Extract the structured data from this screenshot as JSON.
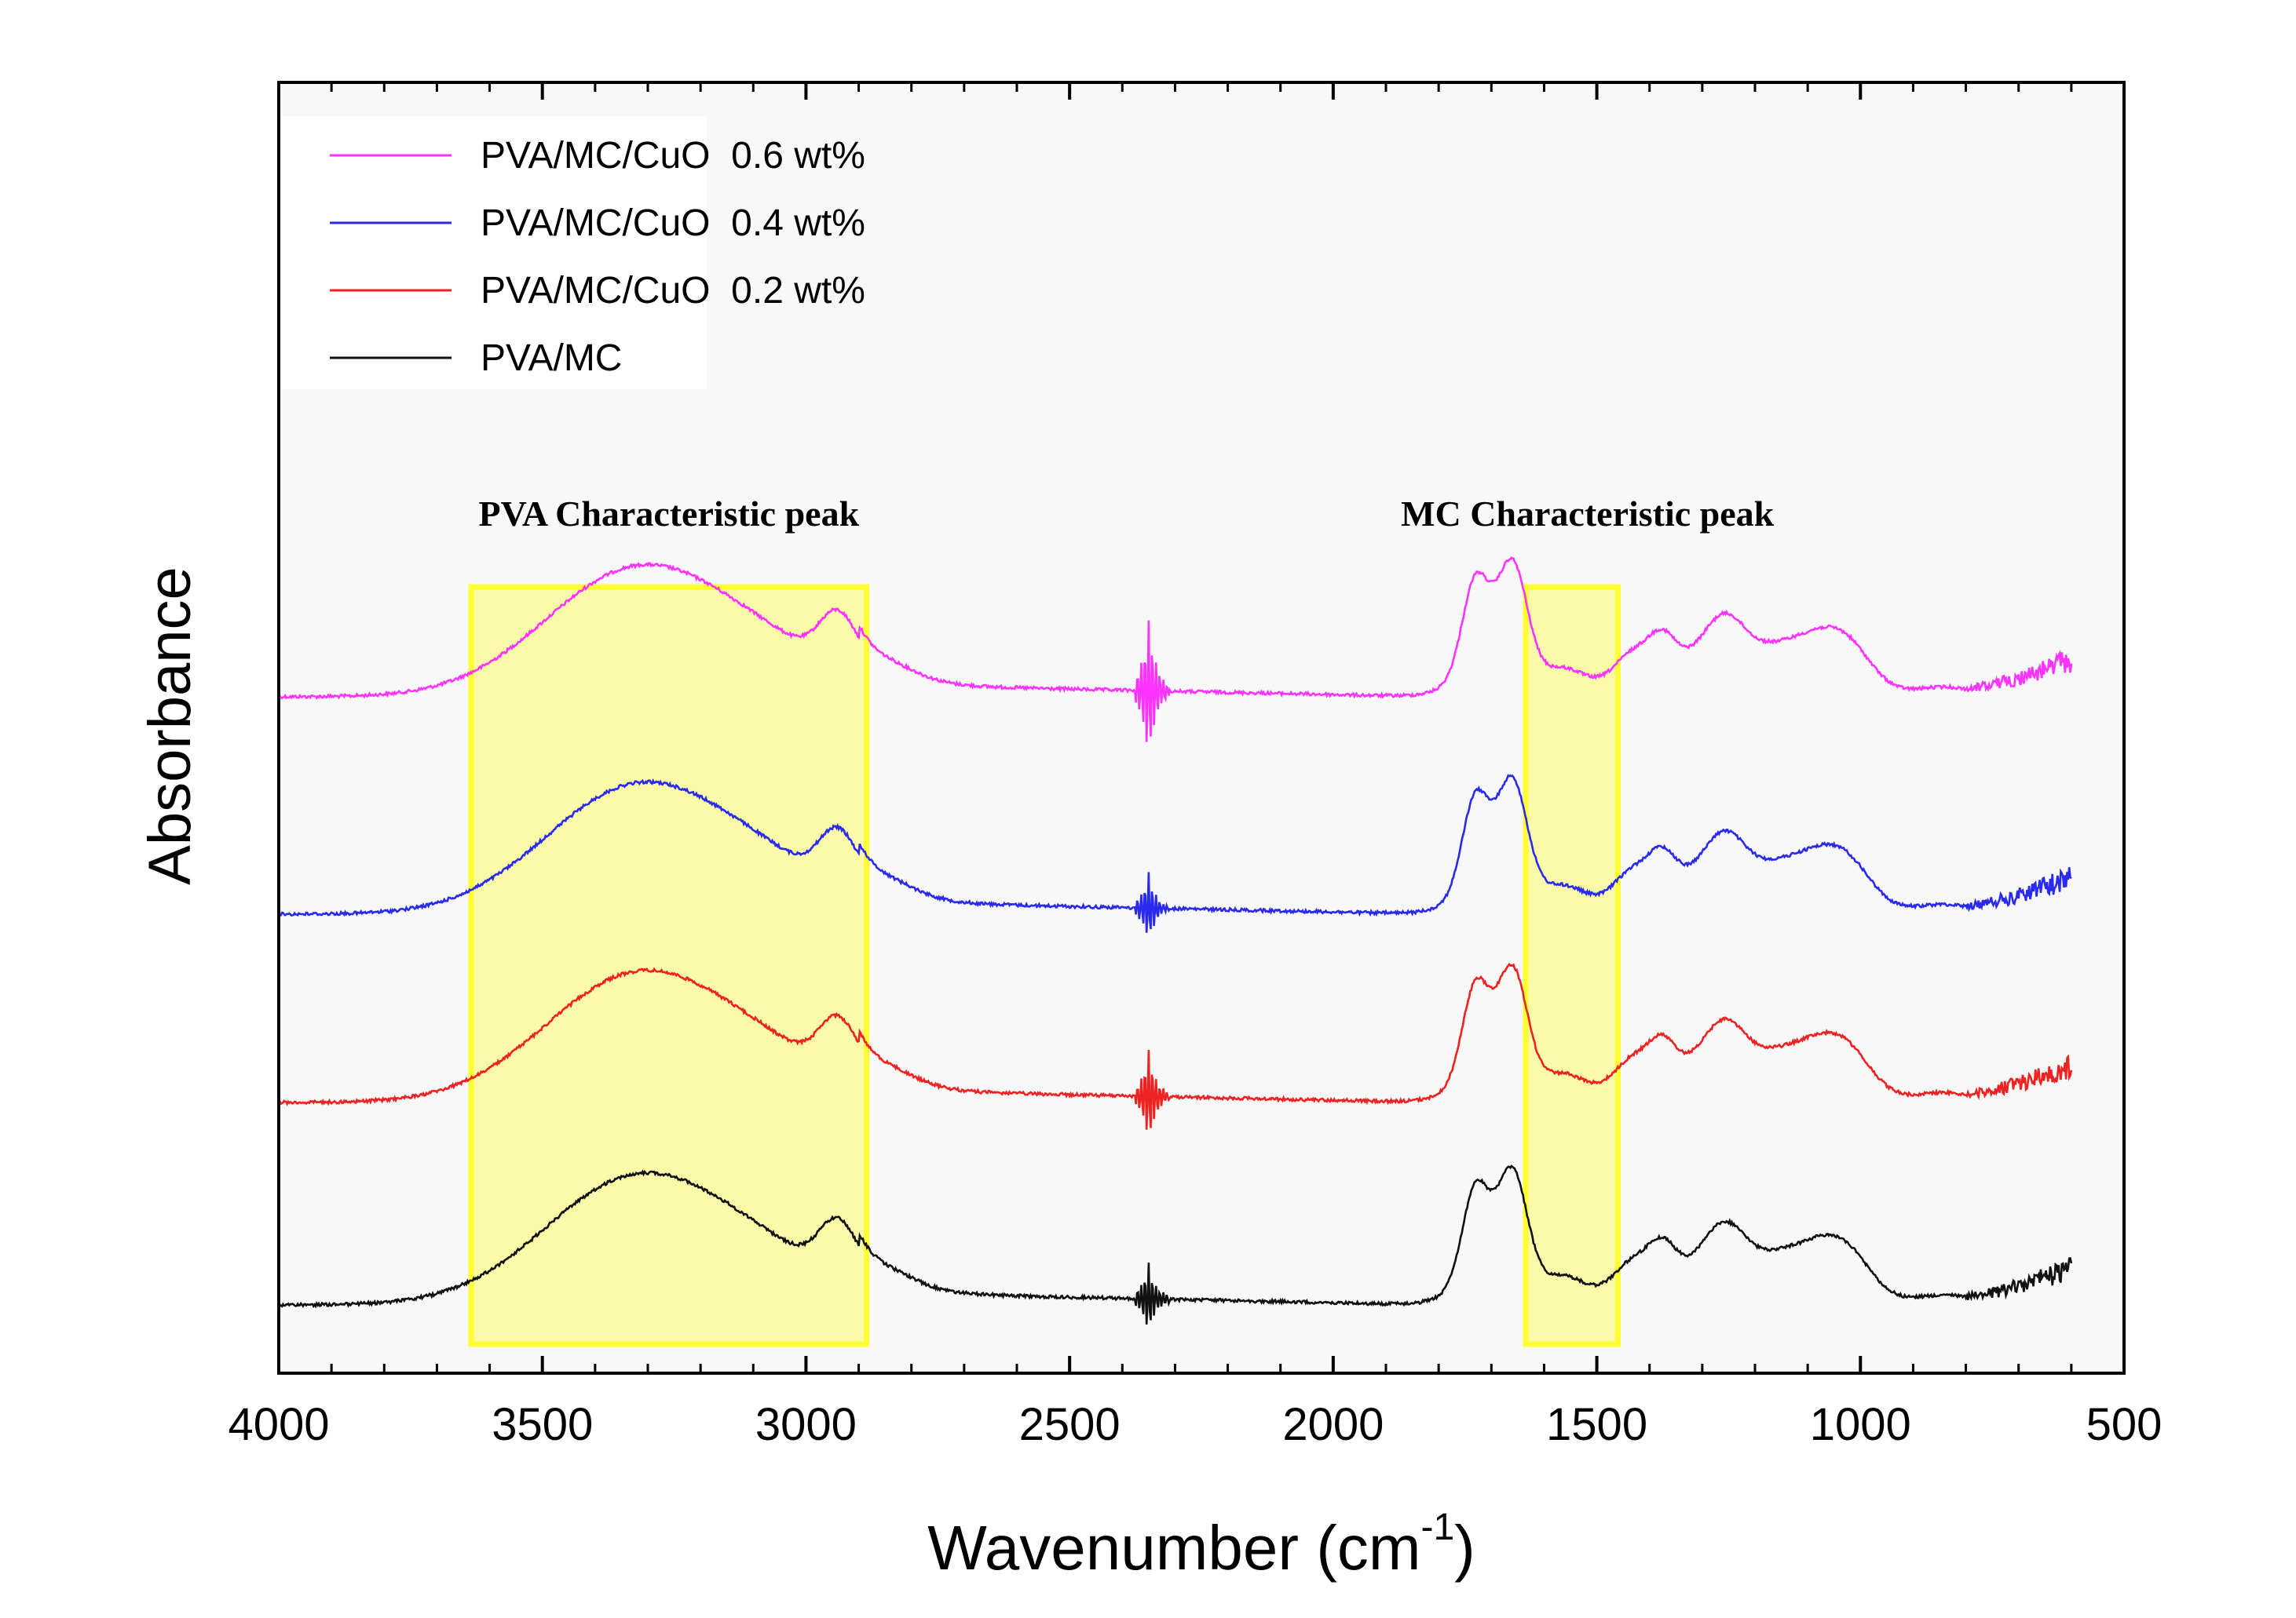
{
  "chart_data": {
    "type": "line",
    "title": "",
    "xlabel": "Wavenumber (cm",
    "xlabel_superscript": "-1",
    "xlabel_close": ")",
    "ylabel": "Absorbance",
    "xlim": [
      4000,
      500
    ],
    "x_reversed": true,
    "x_ticks": [
      4000,
      3500,
      3000,
      2500,
      2000,
      1500,
      1000,
      500
    ],
    "y_ticks_labeled": false,
    "legend_position": "top-left",
    "series": [
      {
        "name": "PVA/MC/CuO  0.6 wt%",
        "color": "#ff33ff"
      },
      {
        "name": "PVA/MC/CuO  0.4 wt%",
        "color": "#2a2aee"
      },
      {
        "name": "PVA/MC/CuO  0.2 wt%",
        "color": "#ee2222"
      },
      {
        "name": "PVA/MC",
        "color": "#111111"
      }
    ],
    "highlight_regions": [
      {
        "label": "PVA Characteristic peak",
        "x_from": 3635,
        "x_to": 2885,
        "color": "#ffff33"
      },
      {
        "label": "MC Characteristic peak",
        "x_from": 1635,
        "x_to": 1460,
        "color": "#ffff33"
      }
    ]
  }
}
